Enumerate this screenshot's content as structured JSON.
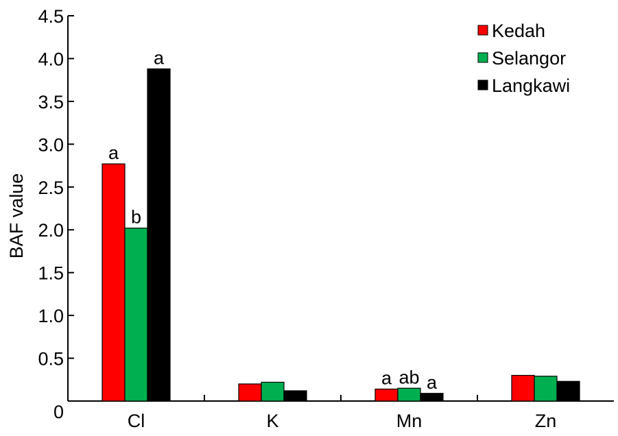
{
  "chart_data": {
    "type": "bar",
    "categories": [
      "Cl",
      "K",
      "Mn",
      "Zn"
    ],
    "series": [
      {
        "name": "Kedah",
        "color": "#ff0000",
        "values": [
          2.77,
          0.2,
          0.14,
          0.3
        ]
      },
      {
        "name": "Selangor",
        "color": "#00b050",
        "values": [
          2.02,
          0.22,
          0.15,
          0.29
        ]
      },
      {
        "name": "Langkawi",
        "color": "#000000",
        "values": [
          3.88,
          0.12,
          0.09,
          0.23
        ]
      }
    ],
    "annotations": [
      {
        "category": "Cl",
        "series": "Kedah",
        "text": "a"
      },
      {
        "category": "Cl",
        "series": "Selangor",
        "text": "b"
      },
      {
        "category": "Cl",
        "series": "Langkawi",
        "text": "a"
      },
      {
        "category": "Mn",
        "series": "Kedah",
        "text": "a"
      },
      {
        "category": "Mn",
        "series": "Selangor",
        "text": "ab"
      },
      {
        "category": "Mn",
        "series": "Langkawi",
        "text": "a"
      }
    ],
    "ylabel": "BAF value",
    "xlabel": "",
    "ylim": [
      0,
      4.5
    ],
    "yticks": [
      "0",
      "0.5",
      "1.0",
      "1.5",
      "2.0",
      "2.5",
      "3.0",
      "3.5",
      "4.0",
      "4.5"
    ],
    "grid": false,
    "legend": "top-right"
  }
}
